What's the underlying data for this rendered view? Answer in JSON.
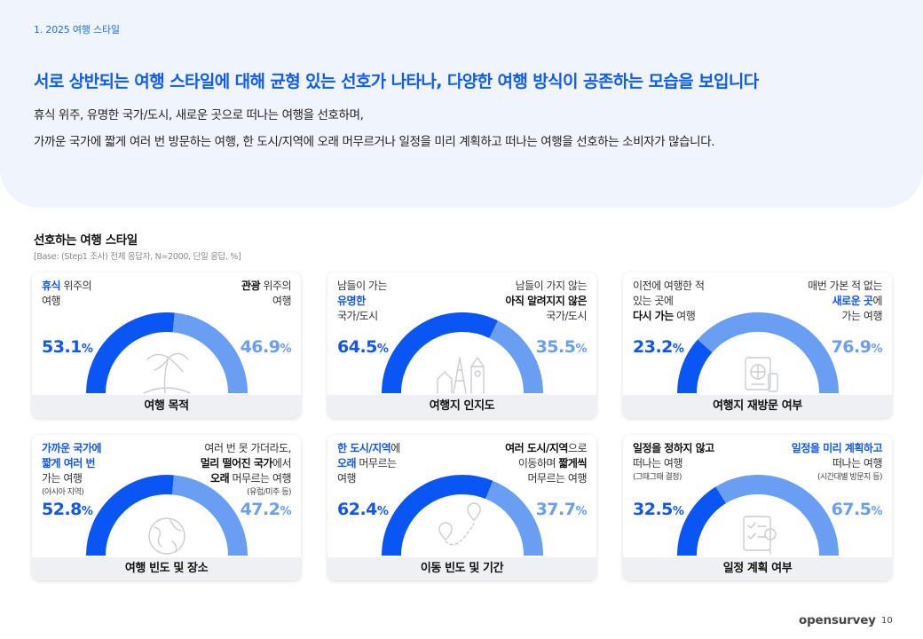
{
  "header": {
    "section_tag": "1. 2025 여행 스타일",
    "headline": "서로 상반되는 여행 스타일에 대해 균형 있는 선호가 나타나, 다양한 여행 방식이 공존하는 모습을 보입니다",
    "desc_line1": "휴식 위주, 유명한 국가/도시, 새로운 곳으로 떠나는 여행을 선호하며,",
    "desc_line2": "가까운 국가에 짧게 여러 번 방문하는 여행, 한 도시/지역에 오래 머무르거나 일정을 미리 계획하고 떠나는 여행을 선호하는 소비자가 많습니다."
  },
  "colors": {
    "primary": "#0a56f5",
    "secondary": "#6a9ef3",
    "accent_text": "#1256f0",
    "panel_bg": "#eff4fd",
    "footer_bg": "#eef0f4",
    "icon": "#c9ccd3"
  },
  "footer": {
    "brand": "opensurvey",
    "page": "10"
  },
  "chart_data": {
    "type": "donut",
    "title": "선호하는 여행 스타일",
    "base_note": "[Base: (Step1 조사) 전체 응답자, N=2000, 단일 응답, %]",
    "unit": "%",
    "charts": [
      {
        "category": "여행 목적",
        "icon": "palm-tree-icon",
        "left": {
          "value": 53.1,
          "label_lines": [
            [
              {
                "t": "휴식",
                "c": "hl"
              },
              {
                "t": " 위주의"
              }
            ],
            [
              {
                "t": "여행"
              }
            ]
          ]
        },
        "right": {
          "value": 46.9,
          "label_lines": [
            [
              {
                "t": "관광",
                "c": "bd"
              },
              {
                "t": " 위주의"
              }
            ],
            [
              {
                "t": "여행"
              }
            ]
          ]
        }
      },
      {
        "category": "여행지 인지도",
        "icon": "landmarks-icon",
        "left": {
          "value": 64.5,
          "label_lines": [
            [
              {
                "t": "남들이 가는"
              }
            ],
            [
              {
                "t": "유명한",
                "c": "hl"
              }
            ],
            [
              {
                "t": "국가/도시"
              }
            ]
          ]
        },
        "right": {
          "value": 35.5,
          "label_lines": [
            [
              {
                "t": "남들이 가지 않는"
              }
            ],
            [
              {
                "t": "아직 알려지지 않은",
                "c": "bd"
              }
            ],
            [
              {
                "t": "국가/도시"
              }
            ]
          ]
        }
      },
      {
        "category": "여행지 재방문 여부",
        "icon": "passport-icon",
        "left": {
          "value": 23.2,
          "label_lines": [
            [
              {
                "t": "이전에 여행한 적"
              }
            ],
            [
              {
                "t": "있는 곳에"
              }
            ],
            [
              {
                "t": "다시 가는",
                "c": "bd"
              },
              {
                "t": " 여행"
              }
            ]
          ]
        },
        "right": {
          "value": 76.9,
          "label_lines": [
            [
              {
                "t": "매번 가본 적 없는"
              }
            ],
            [
              {
                "t": "새로운 곳",
                "c": "hl"
              },
              {
                "t": "에"
              }
            ],
            [
              {
                "t": "가는 여행"
              }
            ]
          ]
        }
      },
      {
        "category": "여행 빈도 및 장소",
        "icon": "globe-icon",
        "left": {
          "value": 52.8,
          "label_lines": [
            [
              {
                "t": "가까운 국가에",
                "c": "hl"
              }
            ],
            [
              {
                "t": "짧게 여러 번",
                "c": "hl"
              }
            ],
            [
              {
                "t": "가는 여행"
              }
            ],
            [
              {
                "t": "(아시아 지역)",
                "s": 1
              }
            ]
          ]
        },
        "right": {
          "value": 47.2,
          "label_lines": [
            [
              {
                "t": "여러 번 못 가더라도,"
              }
            ],
            [
              {
                "t": "멀리 떨어진 국가",
                "c": "bd"
              },
              {
                "t": "에서"
              }
            ],
            [
              {
                "t": "오래",
                "c": "bd"
              },
              {
                "t": " 머무르는 여행"
              }
            ],
            [
              {
                "t": "(유럽/미주 등)",
                "s": 1
              }
            ]
          ]
        }
      },
      {
        "category": "이동 빈도 및 기간",
        "icon": "route-pin-icon",
        "left": {
          "value": 62.4,
          "label_lines": [
            [
              {
                "t": "한 도시/지역",
                "c": "hl"
              },
              {
                "t": "에"
              }
            ],
            [
              {
                "t": "오래",
                "c": "hl"
              },
              {
                "t": " 머무르는"
              }
            ],
            [
              {
                "t": "여행"
              }
            ]
          ]
        },
        "right": {
          "value": 37.7,
          "label_lines": [
            [
              {
                "t": "여러 도시/지역",
                "c": "bd"
              },
              {
                "t": "으로"
              }
            ],
            [
              {
                "t": "이동하며 "
              },
              {
                "t": "짧게씩",
                "c": "bd"
              }
            ],
            [
              {
                "t": "머무르는 여행"
              }
            ]
          ]
        }
      },
      {
        "category": "일정 계획 여부",
        "icon": "checklist-icon",
        "left": {
          "value": 32.5,
          "label_lines": [
            [
              {
                "t": "일정을 정하지 않고",
                "c": "bd"
              }
            ],
            [
              {
                "t": "떠나는 여행"
              }
            ],
            [
              {
                "t": "(그때그때 결정)",
                "s": 1
              }
            ]
          ]
        },
        "right": {
          "value": 67.5,
          "label_lines": [
            [
              {
                "t": "일정을 미리 계획하고",
                "c": "hl"
              }
            ],
            [
              {
                "t": "떠나는 여행"
              }
            ],
            [
              {
                "t": "(시간대별 방문지 등)",
                "s": 1
              }
            ]
          ]
        }
      }
    ]
  }
}
